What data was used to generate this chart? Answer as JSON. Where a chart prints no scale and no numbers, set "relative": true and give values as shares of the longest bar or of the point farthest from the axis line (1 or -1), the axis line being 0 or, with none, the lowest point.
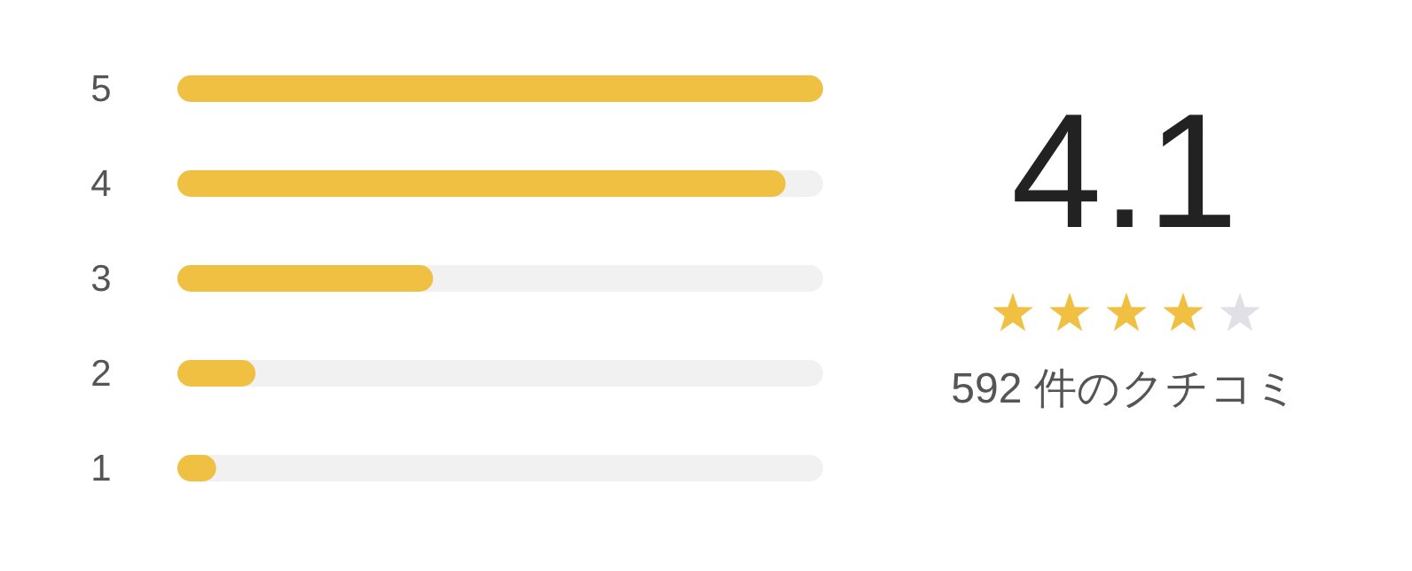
{
  "chart_data": [
    {
      "type": "bar",
      "orientation": "horizontal",
      "relative": true,
      "categories": [
        "5",
        "4",
        "3",
        "2",
        "1"
      ],
      "values": [
        1,
        0.942,
        0.396,
        0.121,
        0.06
      ],
      "color": "#f0c043"
    },
    {
      "type": "other",
      "title": "4.1",
      "annotations": [
        "592 件のクチコミ"
      ]
    }
  ]
}
